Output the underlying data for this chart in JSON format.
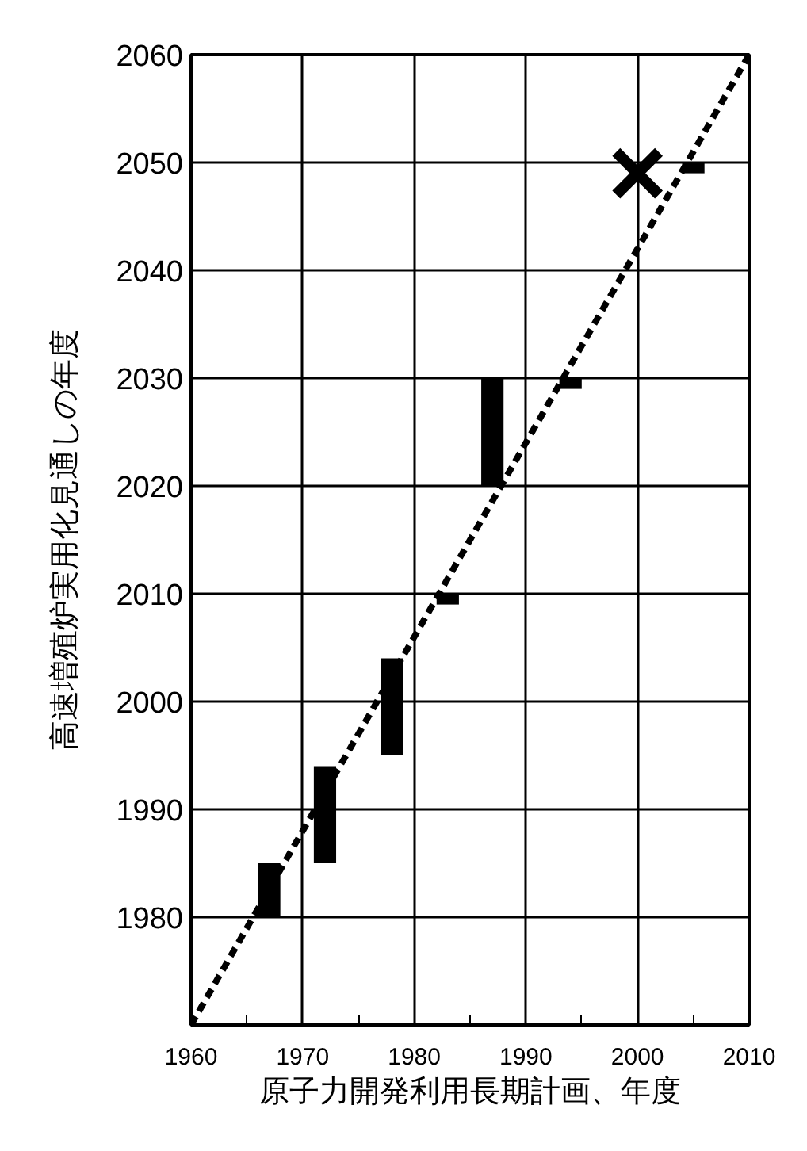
{
  "chart_data": {
    "type": "bar",
    "xlabel": "原子力開発利用長期計画、年度",
    "ylabel": "高速増殖炉実用化見通しの年度",
    "xlim": [
      1960,
      2010
    ],
    "ylim": [
      1970,
      2060
    ],
    "xticks": [
      1960,
      {
        "value": 1965,
        "label": null
      },
      1970,
      {
        "value": 1975,
        "label": null
      },
      1980,
      {
        "value": 1985,
        "label": null
      },
      1990,
      {
        "value": 1995,
        "label": null
      },
      2000,
      {
        "value": 2005,
        "label": null
      },
      2010
    ],
    "yticks": [
      1980,
      1990,
      2000,
      2010,
      2020,
      2030,
      2040,
      2050,
      2060
    ],
    "grid": true,
    "series": [
      {
        "color": "#000000",
        "x": [
          1967,
          1972,
          1978,
          1983,
          1987,
          1994,
          2005
        ],
        "base": [
          1980,
          1985,
          1995,
          2009,
          2020,
          2029,
          2049
        ],
        "values": [
          5,
          9,
          9,
          1,
          10,
          1,
          1
        ]
      },
      {
        "type": "scatter",
        "marker": "cross",
        "color": "#000000",
        "x": [
          2000
        ],
        "values": [
          2049
        ]
      },
      {
        "type": "line",
        "line_style": "dashed",
        "marker": "none",
        "color": "#000000",
        "x": [
          1960,
          2010
        ],
        "values": [
          1970,
          2060
        ]
      }
    ]
  }
}
